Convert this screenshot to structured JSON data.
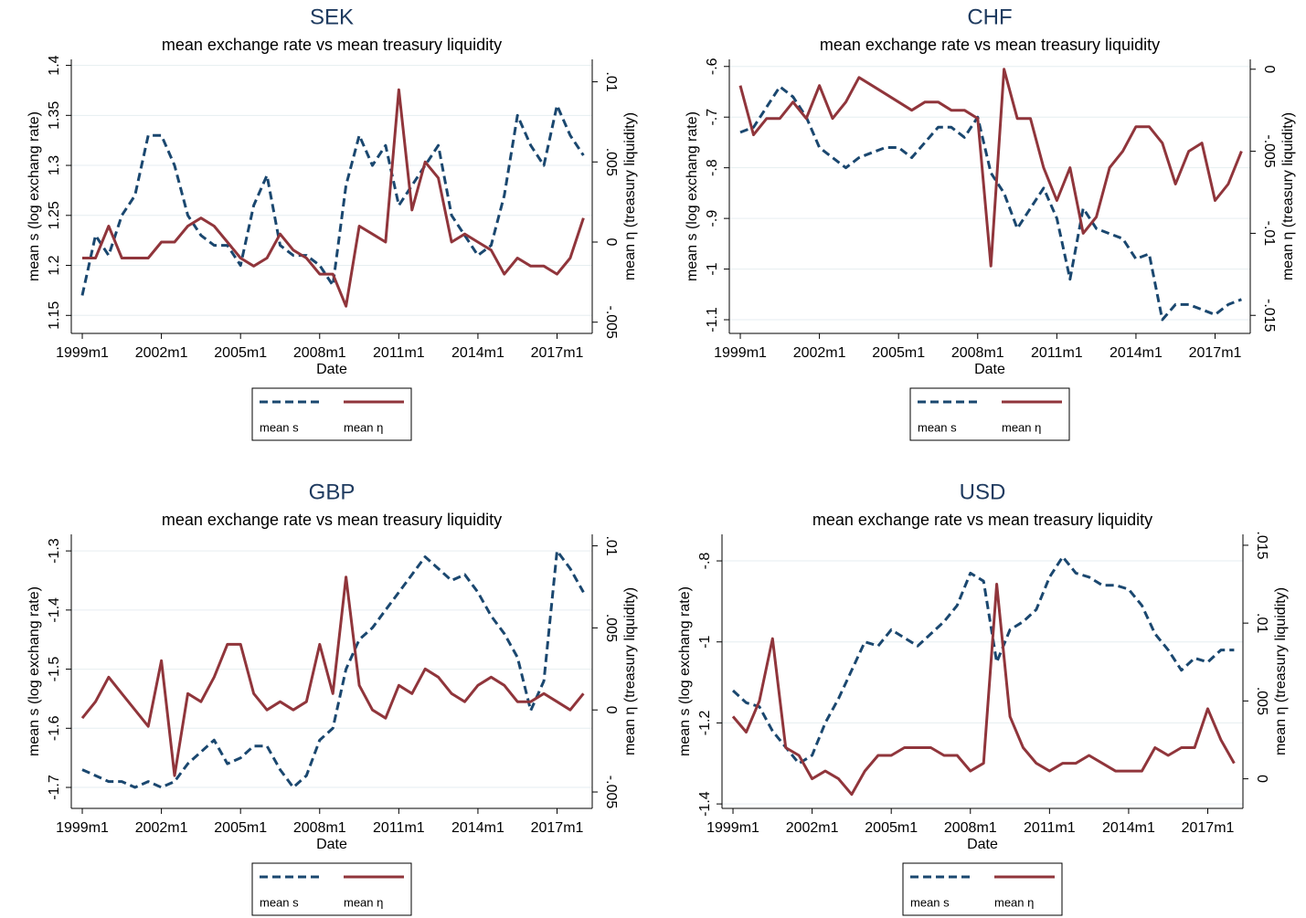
{
  "chart_data": [
    {
      "type": "line",
      "title": "SEK",
      "subtitle": "mean exchange rate vs mean treasury liquidity",
      "xlabel": "Date",
      "ylabel": "mean s (log exchang rate)",
      "y2label": "mean η  (treasury liquidity)",
      "x": [
        "1999m1",
        "1999m7",
        "2000m1",
        "2000m7",
        "2001m1",
        "2001m7",
        "2002m1",
        "2002m7",
        "2003m1",
        "2003m7",
        "2004m1",
        "2004m7",
        "2005m1",
        "2005m7",
        "2006m1",
        "2006m7",
        "2007m1",
        "2007m7",
        "2008m1",
        "2008m7",
        "2009m1",
        "2009m7",
        "2010m1",
        "2010m7",
        "2011m1",
        "2011m7",
        "2012m1",
        "2012m7",
        "2013m1",
        "2013m7",
        "2014m1",
        "2014m7",
        "2015m1",
        "2015m7",
        "2016m1",
        "2016m7",
        "2017m1",
        "2017m7",
        "2018m1"
      ],
      "series": [
        {
          "name": "mean s",
          "color": "#1a476f",
          "dash": true,
          "values": [
            1.17,
            1.23,
            1.21,
            1.25,
            1.27,
            1.33,
            1.33,
            1.3,
            1.25,
            1.23,
            1.22,
            1.22,
            1.2,
            1.26,
            1.29,
            1.22,
            1.21,
            1.21,
            1.2,
            1.18,
            1.28,
            1.33,
            1.3,
            1.32,
            1.26,
            1.28,
            1.3,
            1.32,
            1.25,
            1.23,
            1.21,
            1.22,
            1.27,
            1.35,
            1.32,
            1.3,
            1.36,
            1.33,
            1.31
          ]
        },
        {
          "name": "mean η",
          "color": "#90353b",
          "axis": "y2",
          "values": [
            -0.001,
            -0.001,
            0.001,
            -0.001,
            -0.001,
            -0.001,
            0.0,
            0.0,
            0.001,
            0.0015,
            0.001,
            0.0,
            -0.001,
            -0.0015,
            -0.001,
            0.0005,
            -0.0005,
            -0.001,
            -0.002,
            -0.002,
            -0.004,
            0.001,
            0.0005,
            0.0,
            0.0095,
            0.002,
            0.005,
            0.004,
            0.0,
            0.0005,
            0.0,
            -0.0005,
            -0.002,
            -0.001,
            -0.0015,
            -0.0015,
            -0.002,
            -0.001,
            0.0015
          ]
        }
      ],
      "xlim": [
        "1998m8",
        "2018m5"
      ],
      "xticks": [
        "1999m1",
        "2002m1",
        "2005m1",
        "2008m1",
        "2011m1",
        "2014m1",
        "2017m1"
      ],
      "ylim": [
        1.132,
        1.406
      ],
      "yticks": [
        1.15,
        1.2,
        1.25,
        1.3,
        1.35,
        1.4
      ],
      "y2lim": [
        -0.0057,
        0.0114
      ],
      "y2ticks": [
        {
          "value": -0.005,
          "label": "-.005"
        },
        0,
        {
          "value": 0.005,
          "label": ".005"
        },
        {
          "value": 0.01,
          "label": ".01"
        }
      ],
      "grid": true,
      "legend": "bottom"
    },
    {
      "type": "line",
      "title": "CHF",
      "subtitle": "mean exchange rate vs mean treasury liquidity",
      "xlabel": "Date",
      "ylabel": "mean s (log exchang rate)",
      "y2label": "mean η  (treasury liquidity)",
      "x": [
        "1999m1",
        "1999m7",
        "2000m1",
        "2000m7",
        "2001m1",
        "2001m7",
        "2002m1",
        "2002m7",
        "2003m1",
        "2003m7",
        "2004m1",
        "2004m7",
        "2005m1",
        "2005m7",
        "2006m1",
        "2006m7",
        "2007m1",
        "2007m7",
        "2008m1",
        "2008m7",
        "2009m1",
        "2009m7",
        "2010m1",
        "2010m7",
        "2011m1",
        "2011m7",
        "2012m1",
        "2012m7",
        "2013m1",
        "2013m7",
        "2014m1",
        "2014m7",
        "2015m1",
        "2015m7",
        "2016m1",
        "2016m7",
        "2017m1",
        "2017m7",
        "2018m1"
      ],
      "series": [
        {
          "name": "mean s",
          "color": "#1a476f",
          "dash": true,
          "values": [
            -0.73,
            -0.72,
            -0.68,
            -0.64,
            -0.66,
            -0.7,
            -0.76,
            -0.78,
            -0.8,
            -0.78,
            -0.77,
            -0.76,
            -0.76,
            -0.78,
            -0.75,
            -0.72,
            -0.72,
            -0.74,
            -0.7,
            -0.81,
            -0.85,
            -0.92,
            -0.88,
            -0.84,
            -0.9,
            -1.02,
            -0.88,
            -0.92,
            -0.93,
            -0.94,
            -0.98,
            -0.97,
            -1.1,
            -1.07,
            -1.07,
            -1.08,
            -1.09,
            -1.07,
            -1.06
          ]
        },
        {
          "name": "mean η",
          "color": "#90353b",
          "axis": "y2",
          "values": [
            -0.001,
            -0.004,
            -0.003,
            -0.003,
            -0.002,
            -0.003,
            -0.001,
            -0.003,
            -0.002,
            -0.0005,
            -0.001,
            -0.0015,
            -0.002,
            -0.0025,
            -0.002,
            -0.002,
            -0.0025,
            -0.0025,
            -0.003,
            -0.012,
            0.0,
            -0.003,
            -0.003,
            -0.006,
            -0.008,
            -0.006,
            -0.01,
            -0.009,
            -0.006,
            -0.005,
            -0.0035,
            -0.0035,
            -0.0045,
            -0.007,
            -0.005,
            -0.0045,
            -0.008,
            -0.007,
            -0.005
          ]
        }
      ],
      "xlim": [
        "1998m8",
        "2018m5"
      ],
      "xticks": [
        "1999m1",
        "2002m1",
        "2005m1",
        "2008m1",
        "2011m1",
        "2014m1",
        "2017m1"
      ],
      "ylim": [
        -1.127,
        -0.586
      ],
      "yticks": [
        {
          "value": -1.1,
          "label": "-1.1"
        },
        {
          "value": -1,
          "label": "-1"
        },
        {
          "value": -0.9,
          "label": "-.9"
        },
        {
          "value": -0.8,
          "label": "-.8"
        },
        {
          "value": -0.7,
          "label": "-.7"
        },
        {
          "value": -0.6,
          "label": "-.6"
        }
      ],
      "y2lim": [
        -0.0161,
        0.0006
      ],
      "y2ticks": [
        {
          "value": -0.015,
          "label": "-.015"
        },
        {
          "value": -0.01,
          "label": "-.01"
        },
        {
          "value": -0.005,
          "label": "-.005"
        },
        0
      ],
      "grid": true,
      "legend": "bottom"
    },
    {
      "type": "line",
      "title": "GBP",
      "subtitle": "mean exchange rate vs mean treasury liquidity",
      "xlabel": "Date",
      "ylabel": "mean s (log exchang rate)",
      "y2label": "mean η  (treasury liquidity)",
      "x": [
        "1999m1",
        "1999m7",
        "2000m1",
        "2000m7",
        "2001m1",
        "2001m7",
        "2002m1",
        "2002m7",
        "2003m1",
        "2003m7",
        "2004m1",
        "2004m7",
        "2005m1",
        "2005m7",
        "2006m1",
        "2006m7",
        "2007m1",
        "2007m7",
        "2008m1",
        "2008m7",
        "2009m1",
        "2009m7",
        "2010m1",
        "2010m7",
        "2011m1",
        "2011m7",
        "2012m1",
        "2012m7",
        "2013m1",
        "2013m7",
        "2014m1",
        "2014m7",
        "2015m1",
        "2015m7",
        "2016m1",
        "2016m7",
        "2017m1",
        "2017m7",
        "2018m1"
      ],
      "series": [
        {
          "name": "mean s",
          "color": "#1a476f",
          "dash": true,
          "values": [
            -1.67,
            -1.68,
            -1.69,
            -1.69,
            -1.7,
            -1.69,
            -1.7,
            -1.69,
            -1.66,
            -1.64,
            -1.62,
            -1.66,
            -1.65,
            -1.63,
            -1.63,
            -1.67,
            -1.7,
            -1.68,
            -1.62,
            -1.6,
            -1.5,
            -1.45,
            -1.43,
            -1.4,
            -1.37,
            -1.34,
            -1.31,
            -1.33,
            -1.35,
            -1.34,
            -1.37,
            -1.41,
            -1.44,
            -1.48,
            -1.57,
            -1.52,
            -1.3,
            -1.33,
            -1.37
          ]
        },
        {
          "name": "mean η",
          "color": "#90353b",
          "axis": "y2",
          "values": [
            -0.0005,
            0.0005,
            0.002,
            0.001,
            0.0,
            -0.001,
            0.003,
            -0.004,
            0.001,
            0.0005,
            0.002,
            0.004,
            0.004,
            0.001,
            0.0,
            0.0005,
            0.0,
            0.0005,
            0.004,
            0.001,
            0.0081,
            0.0015,
            0.0,
            -0.0005,
            0.0015,
            0.001,
            0.0025,
            0.002,
            0.001,
            0.0005,
            0.0015,
            0.002,
            0.0015,
            0.0005,
            0.0005,
            0.001,
            0.0005,
            0.0,
            0.001
          ]
        }
      ],
      "xlim": [
        "1998m8",
        "2018m5"
      ],
      "xticks": [
        "1999m1",
        "2002m1",
        "2005m1",
        "2008m1",
        "2011m1",
        "2014m1",
        "2017m1"
      ],
      "ylim": [
        -1.7355,
        -1.272
      ],
      "yticks": [
        {
          "value": -1.7,
          "label": "-1.7"
        },
        {
          "value": -1.6,
          "label": "-1.6"
        },
        {
          "value": -1.5,
          "label": "-1.5"
        },
        {
          "value": -1.4,
          "label": "-1.4"
        },
        {
          "value": -1.3,
          "label": "-1.3"
        }
      ],
      "y2lim": [
        -0.006,
        0.0107
      ],
      "y2ticks": [
        {
          "value": -0.005,
          "label": "-.005"
        },
        0,
        {
          "value": 0.005,
          "label": ".005"
        },
        {
          "value": 0.01,
          "label": ".01"
        }
      ],
      "grid": true,
      "legend": "bottom"
    },
    {
      "type": "line",
      "title": "USD",
      "subtitle": "mean exchange rate vs mean treasury liquidity",
      "xlabel": "Date",
      "ylabel": "mean s (log exchang rate)",
      "y2label": "mean η  (treasury liquidity)",
      "x": [
        "1999m1",
        "1999m7",
        "2000m1",
        "2000m7",
        "2001m1",
        "2001m7",
        "2002m1",
        "2002m7",
        "2003m1",
        "2003m7",
        "2004m1",
        "2004m7",
        "2005m1",
        "2005m7",
        "2006m1",
        "2006m7",
        "2007m1",
        "2007m7",
        "2008m1",
        "2008m7",
        "2009m1",
        "2009m7",
        "2010m1",
        "2010m7",
        "2011m1",
        "2011m7",
        "2012m1",
        "2012m7",
        "2013m1",
        "2013m7",
        "2014m1",
        "2014m7",
        "2015m1",
        "2015m7",
        "2016m1",
        "2016m7",
        "2017m1",
        "2017m7",
        "2018m1"
      ],
      "series": [
        {
          "name": "mean s",
          "color": "#1a476f",
          "dash": true,
          "values": [
            -1.12,
            -1.15,
            -1.16,
            -1.22,
            -1.26,
            -1.3,
            -1.28,
            -1.2,
            -1.14,
            -1.07,
            -1.0,
            -1.01,
            -0.97,
            -0.99,
            -1.01,
            -0.98,
            -0.95,
            -0.91,
            -0.83,
            -0.85,
            -1.05,
            -0.97,
            -0.95,
            -0.92,
            -0.84,
            -0.79,
            -0.83,
            -0.84,
            -0.86,
            -0.86,
            -0.87,
            -0.91,
            -0.98,
            -1.02,
            -1.07,
            -1.04,
            -1.05,
            -1.02,
            -1.02
          ]
        },
        {
          "name": "mean η",
          "color": "#90353b",
          "axis": "y2",
          "values": [
            0.004,
            0.003,
            0.005,
            0.009,
            0.002,
            0.0015,
            0.0,
            0.0005,
            0.0,
            -0.001,
            0.0005,
            0.0015,
            0.0015,
            0.002,
            0.002,
            0.002,
            0.0015,
            0.0015,
            0.0005,
            0.001,
            0.0125,
            0.004,
            0.002,
            0.001,
            0.0005,
            0.001,
            0.001,
            0.0015,
            0.001,
            0.0005,
            0.0005,
            0.0005,
            0.002,
            0.0015,
            0.002,
            0.002,
            0.0045,
            0.0025,
            0.001
          ]
        }
      ],
      "xlim": [
        "1998m8",
        "2018m5"
      ],
      "xticks": [
        "1999m1",
        "2002m1",
        "2005m1",
        "2008m1",
        "2011m1",
        "2014m1",
        "2017m1"
      ],
      "ylim": [
        -1.411,
        -0.7345
      ],
      "yticks": [
        {
          "value": -1.4,
          "label": "-1.4"
        },
        {
          "value": -1.2,
          "label": "-1.2"
        },
        {
          "value": -1,
          "label": "-1"
        },
        {
          "value": -0.8,
          "label": "-.8"
        }
      ],
      "y2lim": [
        -0.0019,
        0.0157
      ],
      "y2ticks": [
        0,
        {
          "value": 0.005,
          "label": ".005"
        },
        {
          "value": 0.01,
          "label": ".01"
        },
        {
          "value": 0.015,
          "label": ".015"
        }
      ],
      "grid": true,
      "legend": "bottom"
    }
  ]
}
